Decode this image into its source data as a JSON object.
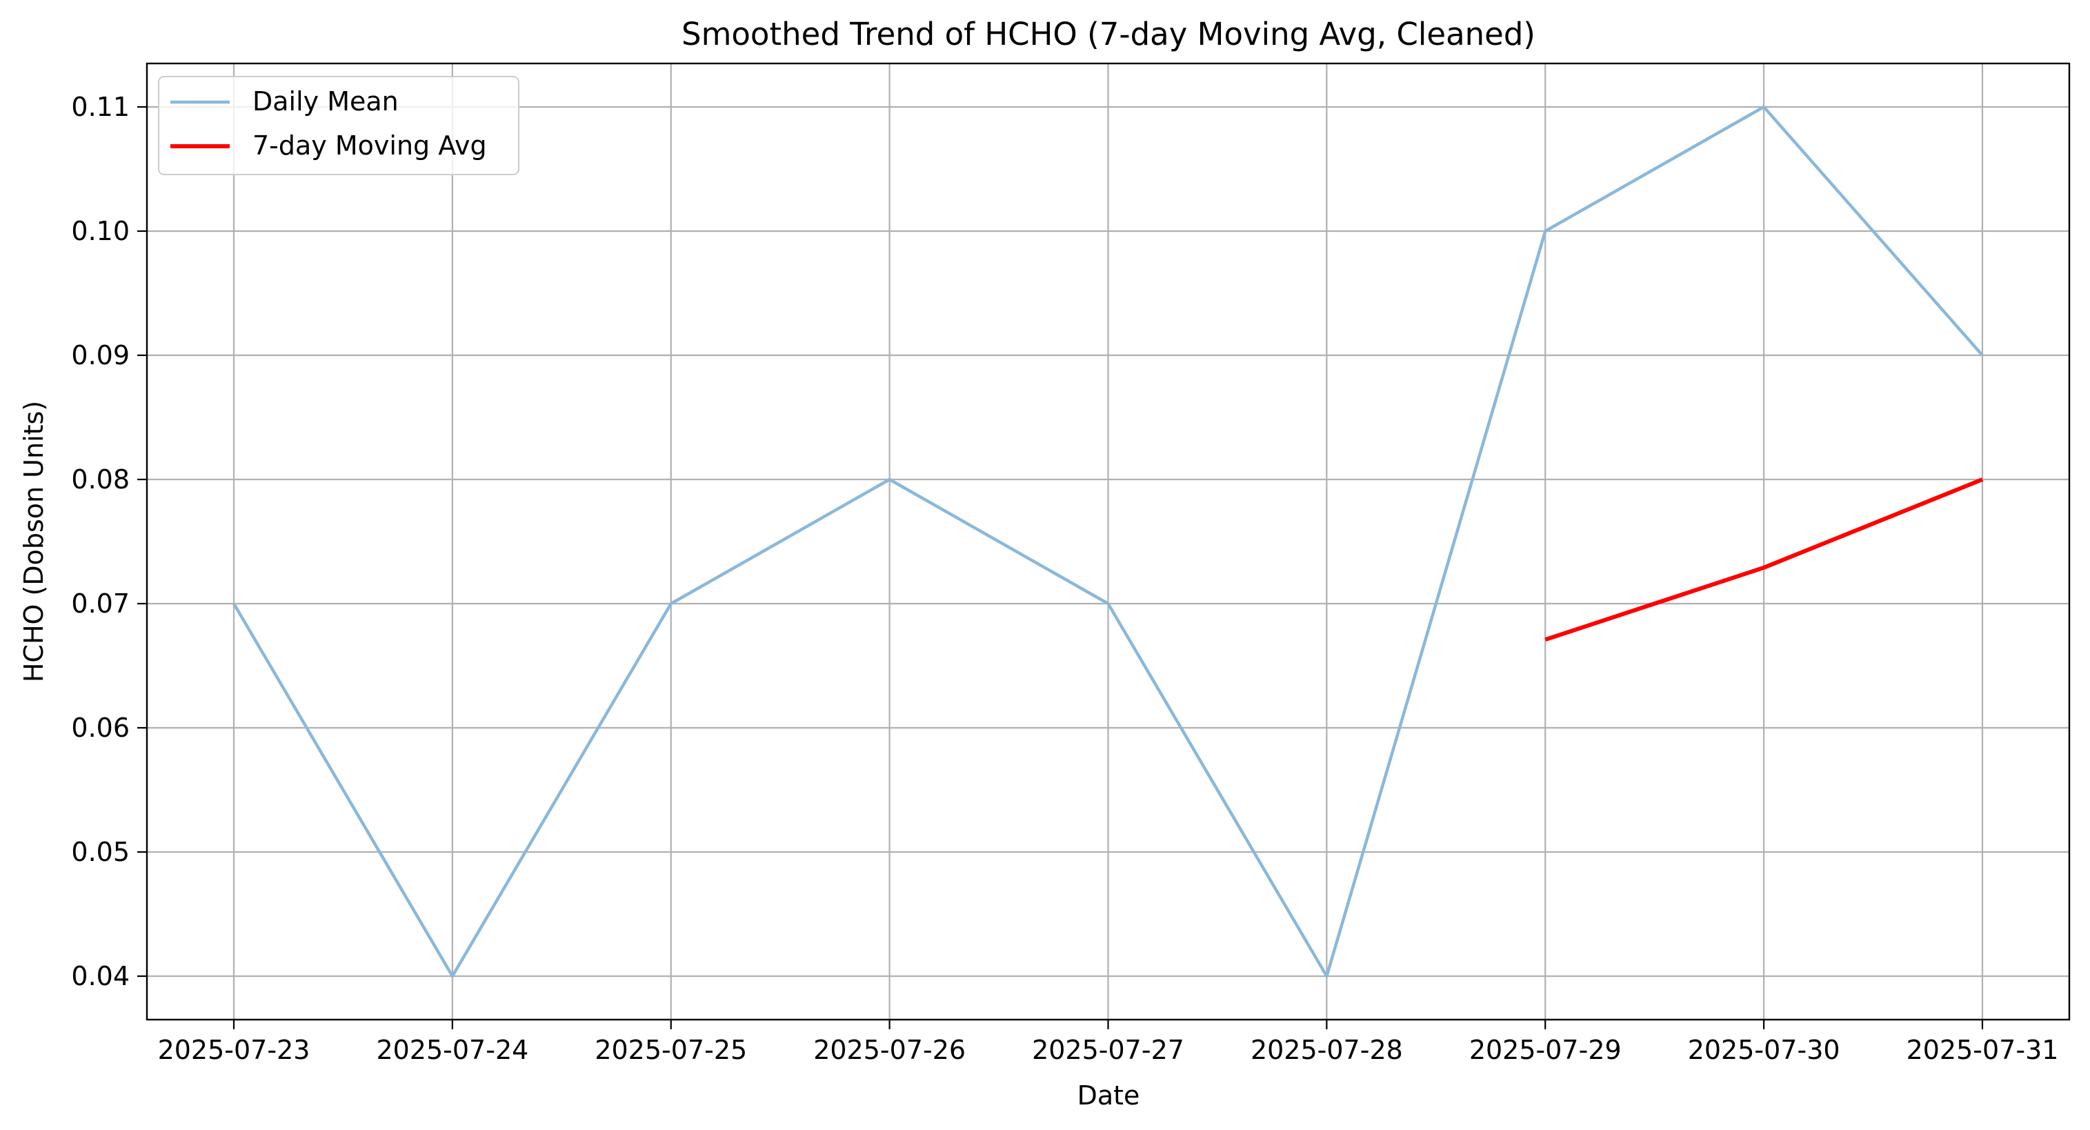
{
  "chart_data": {
    "type": "line",
    "title": "Smoothed Trend of HCHO (7-day Moving Avg, Cleaned)",
    "xlabel": "Date",
    "ylabel": "HCHO (Dobson Units)",
    "x": [
      "2025-07-23",
      "2025-07-24",
      "2025-07-25",
      "2025-07-26",
      "2025-07-27",
      "2025-07-28",
      "2025-07-29",
      "2025-07-30",
      "2025-07-31"
    ],
    "yticks": [
      "0.04",
      "0.05",
      "0.06",
      "0.07",
      "0.08",
      "0.09",
      "0.10",
      "0.11"
    ],
    "ylim": [
      0.0365,
      0.1135
    ],
    "grid": true,
    "legend_position": "top-left",
    "series": [
      {
        "name": "Daily Mean",
        "color": "#8ab8d9",
        "values": [
          0.07,
          0.04,
          0.07,
          0.08,
          0.07,
          0.04,
          0.1,
          0.11,
          0.09
        ]
      },
      {
        "name": "7-day Moving Avg",
        "color": "#ff0000",
        "values": [
          null,
          null,
          null,
          null,
          null,
          null,
          0.0671,
          0.0729,
          0.08
        ]
      }
    ]
  }
}
